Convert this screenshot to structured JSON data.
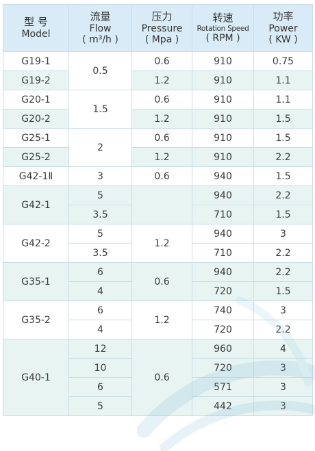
{
  "headers": [
    {
      "zh": "型 号",
      "en": "Model",
      "unit": ""
    },
    {
      "zh": "流量",
      "en": "Flow",
      "unit": "( m³/h )"
    },
    {
      "zh": "压力",
      "en": "Pressure",
      "unit": "( Mpa )"
    },
    {
      "zh": "转速",
      "en": "Rotation Speed",
      "unit": "( RPM )"
    },
    {
      "zh": "功率",
      "en": "Power",
      "unit": "( KW )"
    }
  ],
  "rows": [
    {
      "model": "G19-1",
      "flow": "0.5",
      "pressure": "0.6",
      "speed": "910",
      "power": "0.75"
    },
    {
      "model": "G19-2",
      "flow": "",
      "pressure": "1.2",
      "speed": "910",
      "power": "1.1"
    },
    {
      "model": "G20-1",
      "flow": "1.5",
      "pressure": "0.6",
      "speed": "910",
      "power": "1.1"
    },
    {
      "model": "G20-2",
      "flow": "",
      "pressure": "1.2",
      "speed": "910",
      "power": "1.5"
    },
    {
      "model": "G25-1",
      "flow": "2",
      "pressure": "0.6",
      "speed": "910",
      "power": "1.5"
    },
    {
      "model": "G25-2",
      "flow": "",
      "pressure": "1.2",
      "speed": "910",
      "power": "2.2"
    },
    {
      "model": "G42-1Ⅱ",
      "flow": "3",
      "pressure": "0.6",
      "speed": "940",
      "power": "1.5"
    },
    {
      "model": "G42-1",
      "flow": "5",
      "pressure": "",
      "speed": "940",
      "power": "2.2"
    },
    {
      "model": "",
      "flow": "3.5",
      "pressure": "",
      "speed": "710",
      "power": "1.5"
    },
    {
      "model": "G42-2",
      "flow": "5",
      "pressure": "1.2",
      "speed": "940",
      "power": "3"
    },
    {
      "model": "",
      "flow": "3.5",
      "pressure": "",
      "speed": "710",
      "power": "2.2"
    },
    {
      "model": "G35-1",
      "flow": "6",
      "pressure": "0.6",
      "speed": "940",
      "power": "2.2"
    },
    {
      "model": "",
      "flow": "4",
      "pressure": "",
      "speed": "720",
      "power": "1.5"
    },
    {
      "model": "G35-2",
      "flow": "6",
      "pressure": "1.2",
      "speed": "740",
      "power": "3"
    },
    {
      "model": "",
      "flow": "4",
      "pressure": "",
      "speed": "720",
      "power": "2.2"
    },
    {
      "model": "G40-1",
      "flow": "12",
      "pressure": "0.6",
      "speed": "960",
      "power": "4"
    },
    {
      "model": "",
      "flow": "10",
      "pressure": "",
      "speed": "720",
      "power": "3"
    },
    {
      "model": "",
      "flow": "6",
      "pressure": "",
      "speed": "571",
      "power": "3"
    },
    {
      "model": "",
      "flow": "5",
      "pressure": "",
      "speed": "442",
      "power": "3"
    }
  ],
  "colors": {
    "header_bg": "#d9ebf6",
    "row_green": "#e7f4f1",
    "row_white": "#ffffff",
    "border": "#c9dde8"
  }
}
